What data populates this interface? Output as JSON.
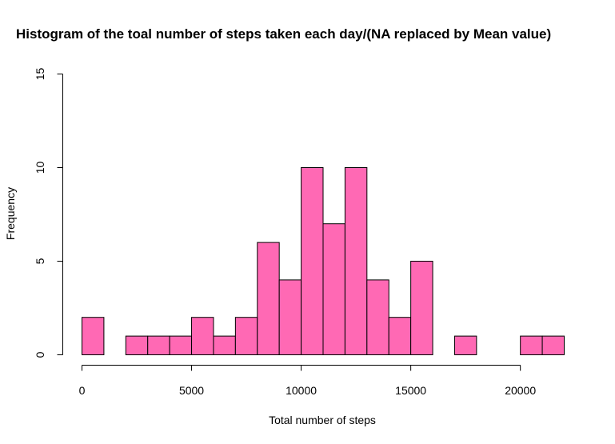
{
  "chart_data": {
    "type": "histogram",
    "title": "Histogram of the toal number of steps taken each day/(NA replaced by Mean value)",
    "xlabel": "Total number of steps",
    "ylabel": "Frequency",
    "xlim": [
      0,
      22000
    ],
    "ylim": [
      0,
      15
    ],
    "bin_width": 1000,
    "bins": [
      {
        "start": 0,
        "end": 1000,
        "count": 2
      },
      {
        "start": 1000,
        "end": 2000,
        "count": 0
      },
      {
        "start": 2000,
        "end": 3000,
        "count": 1
      },
      {
        "start": 3000,
        "end": 4000,
        "count": 1
      },
      {
        "start": 4000,
        "end": 5000,
        "count": 1
      },
      {
        "start": 5000,
        "end": 6000,
        "count": 2
      },
      {
        "start": 6000,
        "end": 7000,
        "count": 1
      },
      {
        "start": 7000,
        "end": 8000,
        "count": 2
      },
      {
        "start": 8000,
        "end": 9000,
        "count": 6
      },
      {
        "start": 9000,
        "end": 10000,
        "count": 4
      },
      {
        "start": 10000,
        "end": 11000,
        "count": 10
      },
      {
        "start": 11000,
        "end": 12000,
        "count": 7
      },
      {
        "start": 12000,
        "end": 13000,
        "count": 10
      },
      {
        "start": 13000,
        "end": 14000,
        "count": 4
      },
      {
        "start": 14000,
        "end": 15000,
        "count": 2
      },
      {
        "start": 15000,
        "end": 16000,
        "count": 5
      },
      {
        "start": 16000,
        "end": 17000,
        "count": 0
      },
      {
        "start": 17000,
        "end": 18000,
        "count": 1
      },
      {
        "start": 18000,
        "end": 19000,
        "count": 0
      },
      {
        "start": 19000,
        "end": 20000,
        "count": 0
      },
      {
        "start": 20000,
        "end": 21000,
        "count": 1
      },
      {
        "start": 21000,
        "end": 22000,
        "count": 1
      }
    ],
    "x_ticks": [
      {
        "value": 0,
        "label": "0"
      },
      {
        "value": 5000,
        "label": "5000"
      },
      {
        "value": 10000,
        "label": "10000"
      },
      {
        "value": 15000,
        "label": "15000"
      },
      {
        "value": 20000,
        "label": "20000"
      }
    ],
    "y_ticks": [
      {
        "value": 0,
        "label": "0"
      },
      {
        "value": 5,
        "label": "5"
      },
      {
        "value": 10,
        "label": "10"
      },
      {
        "value": 15,
        "label": "15"
      }
    ],
    "colors": {
      "bar_fill": "#ff69b4",
      "bar_stroke": "#000000"
    },
    "grid": false,
    "legend": "none"
  }
}
